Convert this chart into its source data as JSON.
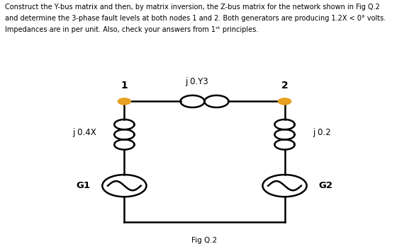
{
  "fig_label": "Fig Q.2",
  "node1_label": "1",
  "node2_label": "2",
  "node_color": "#E8A020",
  "inductor_label_top": "j 0.Y3",
  "inductor_label_left": "j 0.4X",
  "inductor_label_right": "j 0.2",
  "gen1_label": "G1",
  "gen2_label": "G2",
  "background_color": "#ffffff",
  "text_color": "#000000",
  "line_color": "#000000",
  "line_width": 1.8,
  "text_line1": "Construct the Y-bus matrix and then, by matrix inversion, the Z-bus matrix for the network shown in Fig Q.2",
  "text_line2": "and determine the 3-phase fault levels at both nodes 1 and 2. Both generators are producing 1.2X < 0° volts.",
  "text_line3": "Impedances are in per unit. Also, check your answers from 1ˢᵗ principles."
}
